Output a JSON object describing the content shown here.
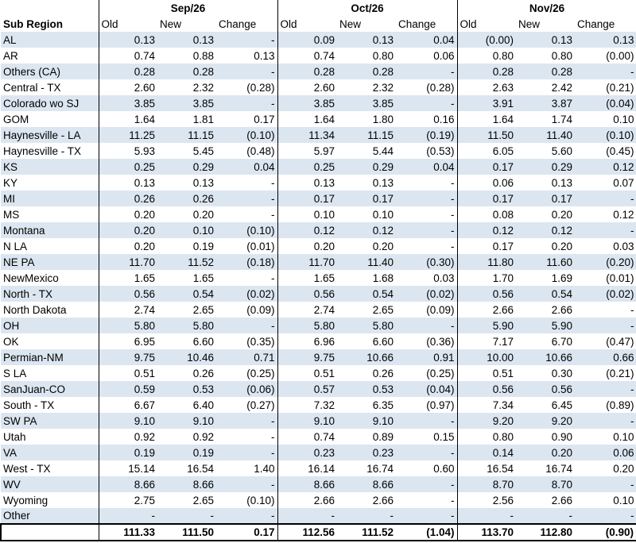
{
  "header": {
    "sub_region_label": "Sub Region",
    "months": [
      "Sep/26",
      "Oct/26",
      "Nov/26"
    ],
    "columns": [
      "Old",
      "New",
      "Change"
    ]
  },
  "rows": [
    {
      "region": "AL",
      "values": [
        "0.13",
        "0.13",
        "-",
        "0.09",
        "0.13",
        "0.04",
        "(0.00)",
        "0.13",
        "0.13"
      ]
    },
    {
      "region": "AR",
      "values": [
        "0.74",
        "0.88",
        "0.13",
        "0.74",
        "0.80",
        "0.06",
        "0.80",
        "0.80",
        "(0.00)"
      ]
    },
    {
      "region": "Others (CA)",
      "values": [
        "0.28",
        "0.28",
        "-",
        "0.28",
        "0.28",
        "-",
        "0.28",
        "0.28",
        "-"
      ]
    },
    {
      "region": "Central - TX",
      "values": [
        "2.60",
        "2.32",
        "(0.28)",
        "2.60",
        "2.32",
        "(0.28)",
        "2.63",
        "2.42",
        "(0.21)"
      ]
    },
    {
      "region": "Colorado wo SJ",
      "values": [
        "3.85",
        "3.85",
        "-",
        "3.85",
        "3.85",
        "-",
        "3.91",
        "3.87",
        "(0.04)"
      ]
    },
    {
      "region": "GOM",
      "values": [
        "1.64",
        "1.81",
        "0.17",
        "1.64",
        "1.80",
        "0.16",
        "1.64",
        "1.74",
        "0.10"
      ]
    },
    {
      "region": "Haynesville - LA",
      "values": [
        "11.25",
        "11.15",
        "(0.10)",
        "11.34",
        "11.15",
        "(0.19)",
        "11.50",
        "11.40",
        "(0.10)"
      ]
    },
    {
      "region": "Haynesville - TX",
      "values": [
        "5.93",
        "5.45",
        "(0.48)",
        "5.97",
        "5.44",
        "(0.53)",
        "6.05",
        "5.60",
        "(0.45)"
      ]
    },
    {
      "region": "KS",
      "values": [
        "0.25",
        "0.29",
        "0.04",
        "0.25",
        "0.29",
        "0.04",
        "0.17",
        "0.29",
        "0.12"
      ]
    },
    {
      "region": "KY",
      "values": [
        "0.13",
        "0.13",
        "-",
        "0.13",
        "0.13",
        "-",
        "0.06",
        "0.13",
        "0.07"
      ]
    },
    {
      "region": "MI",
      "values": [
        "0.26",
        "0.26",
        "-",
        "0.17",
        "0.17",
        "-",
        "0.17",
        "0.17",
        "-"
      ]
    },
    {
      "region": "MS",
      "values": [
        "0.20",
        "0.20",
        "-",
        "0.10",
        "0.10",
        "-",
        "0.08",
        "0.20",
        "0.12"
      ]
    },
    {
      "region": "Montana",
      "values": [
        "0.20",
        "0.10",
        "(0.10)",
        "0.12",
        "0.12",
        "-",
        "0.12",
        "0.12",
        "-"
      ]
    },
    {
      "region": "N LA",
      "values": [
        "0.20",
        "0.19",
        "(0.01)",
        "0.20",
        "0.20",
        "-",
        "0.17",
        "0.20",
        "0.03"
      ]
    },
    {
      "region": "NE PA",
      "values": [
        "11.70",
        "11.52",
        "(0.18)",
        "11.70",
        "11.40",
        "(0.30)",
        "11.80",
        "11.60",
        "(0.20)"
      ]
    },
    {
      "region": "NewMexico",
      "values": [
        "1.65",
        "1.65",
        "-",
        "1.65",
        "1.68",
        "0.03",
        "1.70",
        "1.69",
        "(0.01)"
      ]
    },
    {
      "region": "North - TX",
      "values": [
        "0.56",
        "0.54",
        "(0.02)",
        "0.56",
        "0.54",
        "(0.02)",
        "0.56",
        "0.54",
        "(0.02)"
      ]
    },
    {
      "region": "North Dakota",
      "values": [
        "2.74",
        "2.65",
        "(0.09)",
        "2.74",
        "2.65",
        "(0.09)",
        "2.66",
        "2.66",
        "-"
      ]
    },
    {
      "region": "OH",
      "values": [
        "5.80",
        "5.80",
        "-",
        "5.80",
        "5.80",
        "-",
        "5.90",
        "5.90",
        "-"
      ]
    },
    {
      "region": "OK",
      "values": [
        "6.95",
        "6.60",
        "(0.35)",
        "6.96",
        "6.60",
        "(0.36)",
        "7.17",
        "6.70",
        "(0.47)"
      ]
    },
    {
      "region": "Permian-NM",
      "values": [
        "9.75",
        "10.46",
        "0.71",
        "9.75",
        "10.66",
        "0.91",
        "10.00",
        "10.66",
        "0.66"
      ]
    },
    {
      "region": "S LA",
      "values": [
        "0.51",
        "0.26",
        "(0.25)",
        "0.51",
        "0.26",
        "(0.25)",
        "0.51",
        "0.30",
        "(0.21)"
      ]
    },
    {
      "region": "SanJuan-CO",
      "values": [
        "0.59",
        "0.53",
        "(0.06)",
        "0.57",
        "0.53",
        "(0.04)",
        "0.56",
        "0.56",
        "-"
      ]
    },
    {
      "region": "South - TX",
      "values": [
        "6.67",
        "6.40",
        "(0.27)",
        "7.32",
        "6.35",
        "(0.97)",
        "7.34",
        "6.45",
        "(0.89)"
      ]
    },
    {
      "region": "SW PA",
      "values": [
        "9.10",
        "9.10",
        "-",
        "9.10",
        "9.10",
        "-",
        "9.20",
        "9.20",
        "-"
      ]
    },
    {
      "region": "Utah",
      "values": [
        "0.92",
        "0.92",
        "-",
        "0.74",
        "0.89",
        "0.15",
        "0.80",
        "0.90",
        "0.10"
      ]
    },
    {
      "region": "VA",
      "values": [
        "0.19",
        "0.19",
        "-",
        "0.23",
        "0.23",
        "-",
        "0.14",
        "0.20",
        "0.06"
      ]
    },
    {
      "region": "West - TX",
      "values": [
        "15.14",
        "16.54",
        "1.40",
        "16.14",
        "16.74",
        "0.60",
        "16.54",
        "16.74",
        "0.20"
      ]
    },
    {
      "region": "WV",
      "values": [
        "8.66",
        "8.66",
        "-",
        "8.66",
        "8.66",
        "-",
        "8.70",
        "8.70",
        "-"
      ]
    },
    {
      "region": "Wyoming",
      "values": [
        "2.75",
        "2.65",
        "(0.10)",
        "2.66",
        "2.66",
        "-",
        "2.56",
        "2.66",
        "0.10"
      ]
    },
    {
      "region": "Other",
      "values": [
        "-",
        "-",
        "-",
        "-",
        "-",
        "-",
        "-",
        "-",
        "-"
      ]
    }
  ],
  "totals": [
    "111.33",
    "111.50",
    "0.17",
    "112.56",
    "111.52",
    "(1.04)",
    "113.70",
    "112.80",
    "(0.90)"
  ],
  "colors": {
    "band": "#dce6f1",
    "border": "#000000"
  }
}
